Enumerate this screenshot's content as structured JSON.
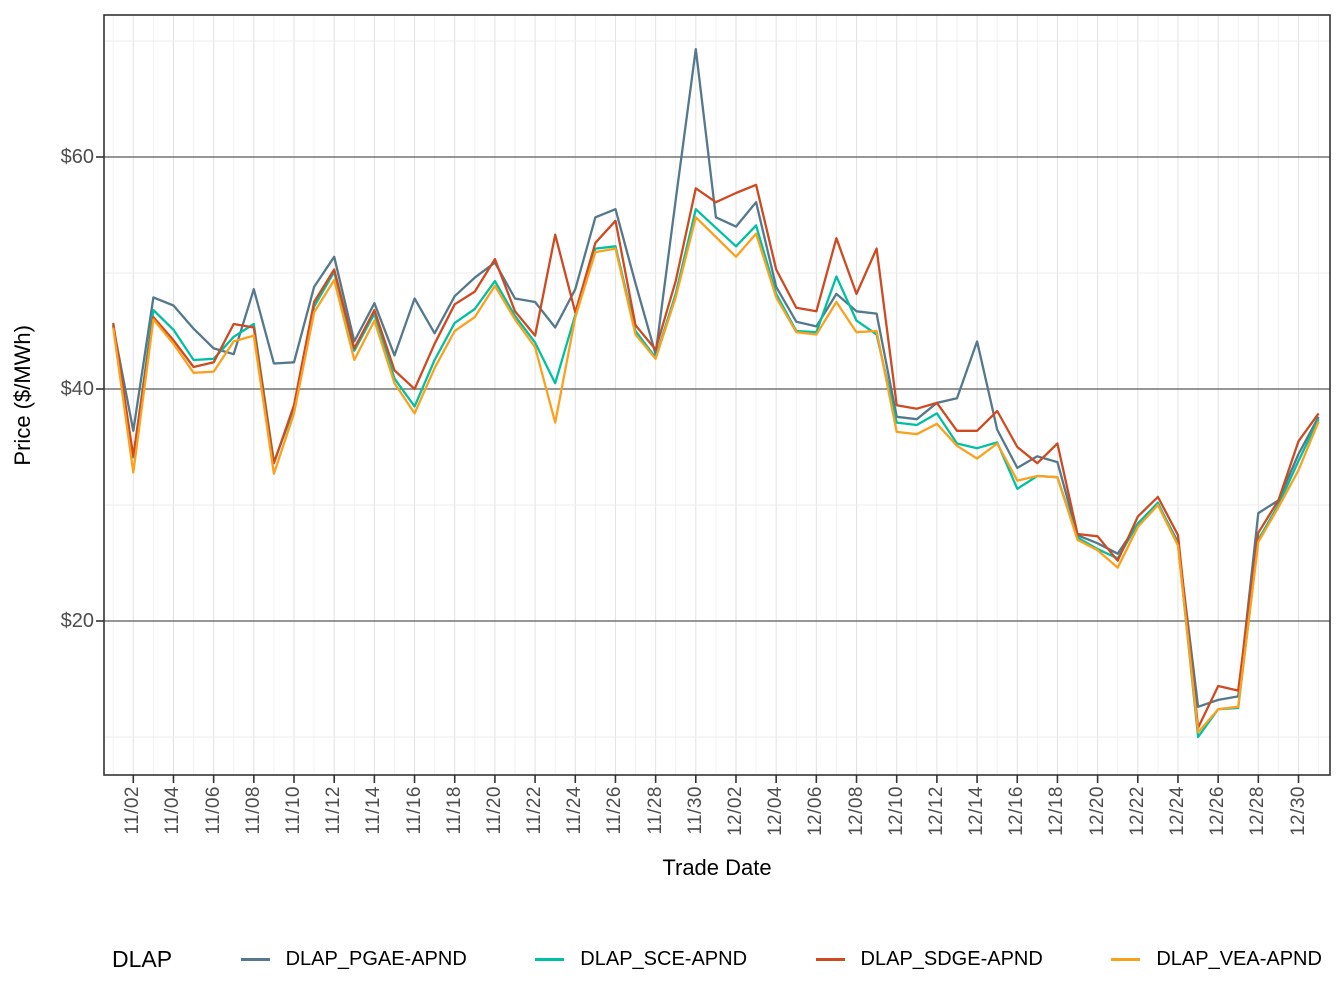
{
  "figure_type": "line-chart",
  "axes": {
    "y_title": "Price ($/MWh)",
    "x_title": "Trade Date",
    "y_ticks": [
      {
        "label": "$20",
        "value": 20
      },
      {
        "label": "$40",
        "value": 40
      },
      {
        "label": "$60",
        "value": 60
      }
    ]
  },
  "legend": {
    "title": "DLAP",
    "items": [
      {
        "label": "DLAP_PGAE-APND",
        "color": "#54788C"
      },
      {
        "label": "DLAP_SCE-APND",
        "color": "#00C0A3"
      },
      {
        "label": "DLAP_SDGE-APND",
        "color": "#CE4A21"
      },
      {
        "label": "DLAP_VEA-APND",
        "color": "#FBA11E"
      }
    ]
  },
  "chart_data": {
    "type": "line",
    "title": "",
    "xlabel": "Trade Date",
    "ylabel": "Price ($/MWh)",
    "ylim": [
      6.5,
      72
    ],
    "y_major_gridlines": [
      20,
      40,
      60
    ],
    "y_minor_gridlines": [
      10,
      30,
      50,
      70
    ],
    "grid": "on",
    "legend_position": "bottom",
    "x": [
      "11/01",
      "11/02",
      "11/03",
      "11/04",
      "11/05",
      "11/06",
      "11/07",
      "11/08",
      "11/09",
      "11/10",
      "11/11",
      "11/12",
      "11/13",
      "11/14",
      "11/15",
      "11/16",
      "11/17",
      "11/18",
      "11/19",
      "11/20",
      "11/21",
      "11/22",
      "11/23",
      "11/24",
      "11/25",
      "11/26",
      "11/27",
      "11/28",
      "11/29",
      "11/30",
      "12/01",
      "12/02",
      "12/03",
      "12/04",
      "12/05",
      "12/06",
      "12/07",
      "12/08",
      "12/09",
      "12/10",
      "12/11",
      "12/12",
      "12/13",
      "12/14",
      "12/15",
      "12/16",
      "12/17",
      "12/18",
      "12/19",
      "12/20",
      "12/21",
      "12/22",
      "12/23",
      "12/24",
      "12/25",
      "12/26",
      "12/27",
      "12/28",
      "12/29",
      "12/30",
      "12/31"
    ],
    "x_tick_labels": [
      "11/02",
      "11/04",
      "11/06",
      "11/08",
      "11/10",
      "11/12",
      "11/14",
      "11/16",
      "11/18",
      "11/20",
      "11/22",
      "11/24",
      "11/26",
      "11/28",
      "11/30",
      "12/02",
      "12/04",
      "12/06",
      "12/08",
      "12/10",
      "12/12",
      "12/14",
      "12/16",
      "12/18",
      "12/20",
      "12/22",
      "12/24",
      "12/26",
      "12/28",
      "12/30"
    ],
    "series": [
      {
        "name": "DLAP_PGAE-APND",
        "color": "#54788C",
        "values": [
          45.4,
          36.4,
          47.9,
          47.2,
          45.2,
          43.5,
          43.0,
          48.6,
          42.2,
          42.3,
          48.8,
          51.4,
          44.1,
          47.4,
          42.9,
          47.8,
          44.8,
          48.0,
          49.6,
          50.9,
          47.8,
          47.5,
          45.3,
          48.6,
          54.8,
          55.5,
          49.1,
          43.0,
          56.3,
          69.3,
          54.8,
          54.0,
          56.1,
          48.8,
          45.8,
          45.4,
          48.2,
          46.7,
          46.5,
          37.6,
          37.4,
          38.8,
          39.2,
          44.1,
          36.5,
          33.2,
          34.2,
          33.7,
          27.4,
          26.7,
          25.8,
          28.4,
          30.1,
          26.8,
          12.6,
          13.2,
          13.5,
          29.3,
          30.4,
          34.4,
          37.6
        ]
      },
      {
        "name": "DLAP_SCE-APND",
        "color": "#00C0A3",
        "values": [
          45.5,
          34.1,
          46.8,
          45.1,
          42.5,
          42.6,
          44.5,
          45.6,
          33.7,
          38.3,
          47.1,
          50.1,
          43.3,
          46.5,
          40.9,
          38.5,
          42.5,
          45.7,
          46.9,
          49.3,
          46.3,
          44.0,
          40.5,
          46.4,
          52.1,
          52.3,
          45.0,
          42.7,
          48.2,
          55.5,
          53.9,
          52.3,
          54.1,
          48.2,
          45.0,
          44.9,
          49.7,
          45.9,
          44.7,
          37.1,
          36.9,
          37.9,
          35.3,
          34.9,
          35.4,
          31.4,
          32.5,
          32.4,
          27.2,
          26.2,
          25.4,
          28.4,
          30.2,
          26.6,
          10.0,
          12.4,
          12.5,
          27.0,
          30.0,
          33.8,
          37.4
        ]
      },
      {
        "name": "DLAP_SDGE-APND",
        "color": "#CE4A21",
        "values": [
          45.7,
          34.2,
          46.2,
          44.2,
          41.9,
          42.3,
          45.6,
          45.3,
          33.6,
          38.6,
          47.5,
          50.3,
          43.5,
          46.8,
          41.6,
          40.0,
          43.9,
          47.3,
          48.4,
          51.2,
          46.7,
          44.6,
          53.3,
          46.6,
          52.6,
          54.5,
          45.5,
          43.4,
          49.3,
          57.3,
          56.1,
          56.9,
          57.6,
          50.3,
          47.0,
          46.7,
          53.0,
          48.2,
          52.1,
          38.6,
          38.3,
          38.8,
          36.4,
          36.4,
          38.1,
          35.0,
          33.6,
          35.3,
          27.5,
          27.3,
          25.2,
          29.0,
          30.7,
          27.4,
          10.8,
          14.4,
          14.0,
          27.6,
          30.4,
          35.5,
          37.9
        ]
      },
      {
        "name": "DLAP_VEA-APND",
        "color": "#FBA11E",
        "values": [
          45.3,
          32.8,
          46.0,
          43.9,
          41.4,
          41.5,
          44.1,
          44.6,
          32.7,
          37.9,
          46.6,
          49.4,
          42.5,
          45.9,
          40.5,
          37.9,
          41.8,
          45.0,
          46.2,
          48.9,
          46.0,
          43.6,
          37.1,
          46.2,
          51.8,
          52.1,
          44.7,
          42.6,
          47.9,
          54.8,
          53.1,
          51.4,
          53.4,
          47.9,
          44.9,
          44.7,
          47.5,
          44.9,
          45.0,
          36.3,
          36.1,
          37.0,
          35.1,
          34.0,
          35.3,
          32.1,
          32.5,
          32.4,
          27.0,
          26.1,
          24.6,
          28.1,
          30.0,
          26.5,
          10.4,
          12.4,
          12.6,
          26.8,
          29.8,
          33.0,
          37.2
        ]
      }
    ]
  },
  "style": {
    "panel_border_color": "#333333",
    "major_h_grid_color": "#595959",
    "minor_h_grid_color": "#ededed",
    "major_v_grid_color": "#e2e2e2",
    "minor_v_grid_color": "#f2f2f2",
    "tick_color": "#333333",
    "tick_label_color": "#4d4d4d"
  }
}
